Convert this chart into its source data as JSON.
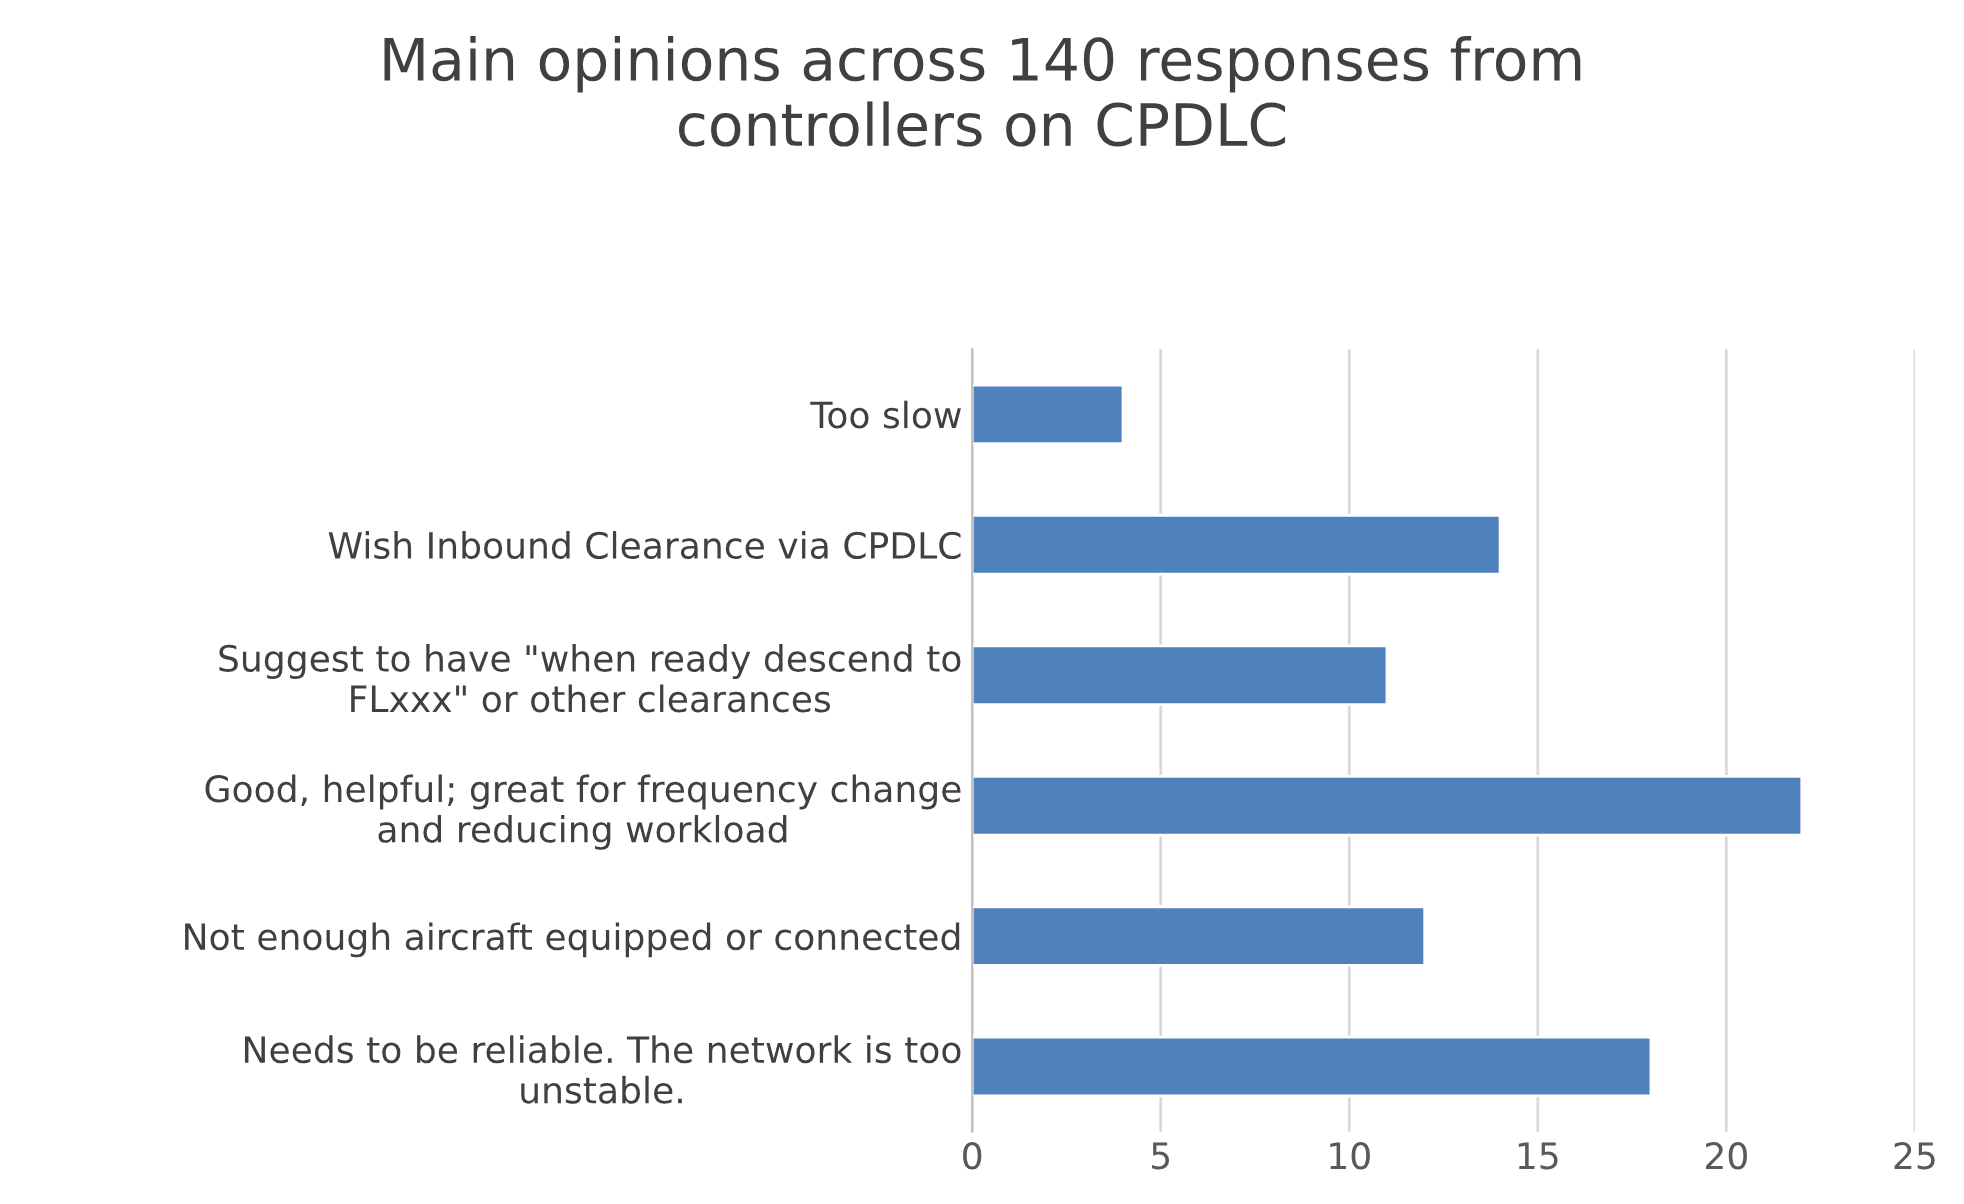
{
  "chart_data": {
    "type": "bar",
    "orientation": "horizontal",
    "title": "Main opinions across 140 responses from\ncontrollers on CPDLC",
    "categories": [
      "Too slow",
      "Wish Inbound Clearance via CPDLC",
      "Suggest to have \"when ready descend to\nFLxxx\" or other clearances",
      "Good, helpful; great for frequency change\nand reducing workload",
      "Not enough aircraft equipped or connected",
      "Needs to be reliable. The network is too\nunstable."
    ],
    "values": [
      4,
      14,
      11,
      22,
      12,
      18
    ],
    "color": "#4f81bd",
    "xlim": [
      0,
      25
    ],
    "xticks": [
      0,
      5,
      10,
      15,
      20,
      25
    ],
    "grid": "x"
  }
}
